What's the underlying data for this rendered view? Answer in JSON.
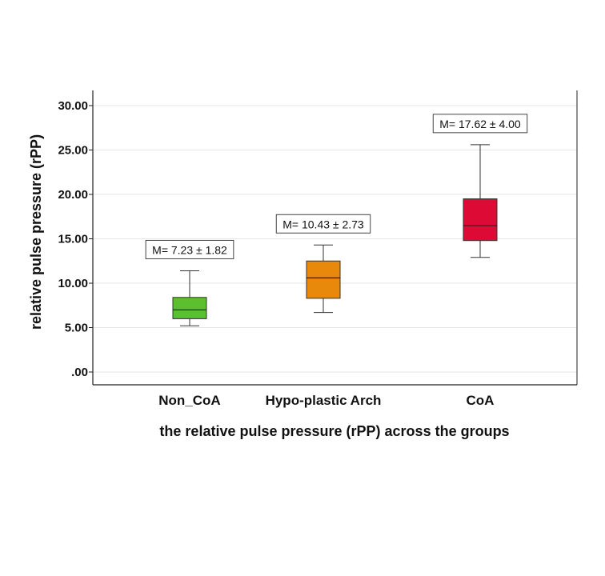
{
  "chart_data": {
    "type": "box",
    "xlabel": "the relative pulse pressure (rPP) across the groups",
    "ylabel": "relative pulse pressure (rPP)",
    "ylim": [
      0,
      31.5
    ],
    "yticks": [
      0,
      5,
      10,
      15,
      20,
      25,
      30
    ],
    "ytick_labels": [
      ".00",
      "5.00",
      "10.00",
      "15.00",
      "20.00",
      "25.00",
      "30.00"
    ],
    "grid": true,
    "categories": [
      "Non_CoA",
      "Hypo-plastic Arch",
      "CoA"
    ],
    "boxes": [
      {
        "category": "Non_CoA",
        "whisker_low": 5.2,
        "q1": 6.0,
        "median": 7.0,
        "q3": 8.4,
        "whisker_high": 11.4,
        "color": "#5bbf2e",
        "annotation": "M= 7.23 ± 1.82"
      },
      {
        "category": "Hypo-plastic Arch",
        "whisker_low": 6.7,
        "q1": 8.3,
        "median": 10.6,
        "q3": 12.5,
        "whisker_high": 14.3,
        "color": "#e8890c",
        "annotation": "M= 10.43  ± 2.73"
      },
      {
        "category": "CoA",
        "whisker_low": 12.9,
        "q1": 14.8,
        "median": 16.5,
        "q3": 19.5,
        "whisker_high": 25.6,
        "color": "#dc0a35",
        "annotation": "M= 17.62 ± 4.00"
      }
    ]
  }
}
